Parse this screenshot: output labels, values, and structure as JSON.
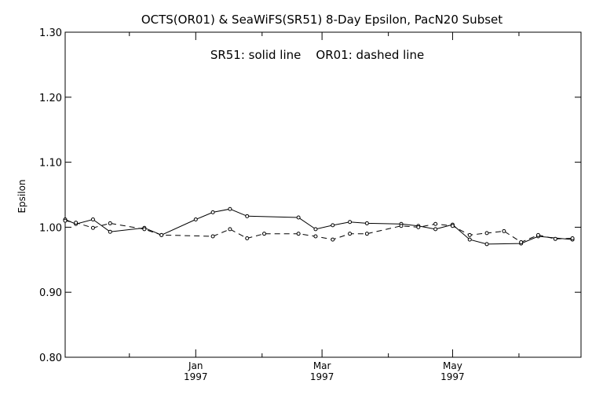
{
  "chart_data": {
    "type": "line",
    "title": "OCTS(OR01) & SeaWiFS(SR51) 8-Day Epsilon, PacN20 Subset",
    "annotation": "SR51: solid line    OR01: dashed line",
    "ylabel": "Epsilon",
    "xlabel": "",
    "ylim": [
      0.8,
      1.3
    ],
    "yticks": [
      "0.80",
      "0.90",
      "1.00",
      "1.10",
      "1.20",
      "1.30"
    ],
    "xlim": [
      "1996-11-01",
      "1997-06-30"
    ],
    "xticks": [
      {
        "month": "Jan",
        "year": "1997",
        "date": "1997-01-01"
      },
      {
        "month": "Mar",
        "year": "1997",
        "date": "1997-03-01"
      },
      {
        "month": "May",
        "year": "1997",
        "date": "1997-05-01"
      }
    ],
    "minor_ticks": [
      "1996-12-01",
      "1997-02-01",
      "1997-04-01",
      "1997-06-01"
    ],
    "grid": false,
    "legend": "none",
    "series": [
      {
        "name": "SR51",
        "style": "solid",
        "color": "#000000",
        "points": [
          [
            "1996-11-01",
            1.012
          ],
          [
            "1996-11-06",
            1.005
          ],
          [
            "1996-11-14",
            1.012
          ],
          [
            "1996-11-22",
            0.993
          ],
          [
            "1996-12-08",
            0.999
          ],
          [
            "1996-12-16",
            0.988
          ],
          [
            "1997-01-01",
            1.012
          ],
          [
            "1997-01-09",
            1.023
          ],
          [
            "1997-01-17",
            1.028
          ],
          [
            "1997-01-25",
            1.017
          ],
          [
            "1997-02-18",
            1.015
          ],
          [
            "1997-02-26",
            0.997
          ],
          [
            "1997-03-06",
            1.003
          ],
          [
            "1997-03-14",
            1.008
          ],
          [
            "1997-03-22",
            1.006
          ],
          [
            "1997-04-07",
            1.005
          ],
          [
            "1997-04-15",
            1.002
          ],
          [
            "1997-04-23",
            0.997
          ],
          [
            "1997-05-01",
            1.004
          ],
          [
            "1997-05-09",
            0.981
          ],
          [
            "1997-05-17",
            0.974
          ],
          [
            "1997-06-02",
            0.975
          ],
          [
            "1997-06-10",
            0.986
          ],
          [
            "1997-06-26",
            0.981
          ]
        ]
      },
      {
        "name": "OR01",
        "style": "dashed",
        "color": "#000000",
        "points": [
          [
            "1996-11-01",
            1.01
          ],
          [
            "1996-11-06",
            1.007
          ],
          [
            "1996-11-14",
            0.999
          ],
          [
            "1996-11-22",
            1.006
          ],
          [
            "1996-12-08",
            0.997
          ],
          [
            "1996-12-16",
            0.988
          ],
          [
            "1997-01-09",
            0.986
          ],
          [
            "1997-01-17",
            0.997
          ],
          [
            "1997-01-25",
            0.983
          ],
          [
            "1997-02-02",
            0.99
          ],
          [
            "1997-02-18",
            0.99
          ],
          [
            "1997-02-26",
            0.986
          ],
          [
            "1997-03-06",
            0.981
          ],
          [
            "1997-03-14",
            0.99
          ],
          [
            "1997-03-22",
            0.99
          ],
          [
            "1997-04-07",
            1.002
          ],
          [
            "1997-04-15",
            1.0
          ],
          [
            "1997-04-23",
            1.005
          ],
          [
            "1997-05-01",
            1.002
          ],
          [
            "1997-05-09",
            0.988
          ],
          [
            "1997-05-17",
            0.991
          ],
          [
            "1997-05-25",
            0.994
          ],
          [
            "1997-06-02",
            0.977
          ],
          [
            "1997-06-10",
            0.988
          ],
          [
            "1997-06-18",
            0.982
          ],
          [
            "1997-06-26",
            0.983
          ]
        ]
      }
    ]
  }
}
